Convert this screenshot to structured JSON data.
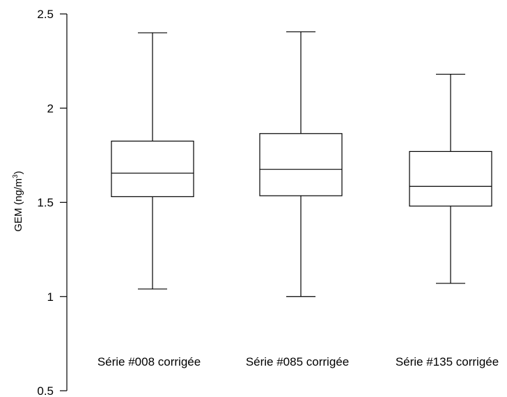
{
  "chart_data": {
    "type": "boxplot",
    "title": "",
    "xlabel": "",
    "ylabel": {
      "main": "GEM (ng/m",
      "sup": "3",
      "tail": ")"
    },
    "ylim": [
      0.5,
      2.5
    ],
    "yticks": [
      0.5,
      1,
      1.5,
      2,
      2.5
    ],
    "ytick_labels": [
      "0.5",
      "1",
      "1.5",
      "2",
      "2.5"
    ],
    "grid": false,
    "categories": [
      "Série #008 corrigée",
      "Série #085 corrigée",
      "Série #135 corrigée"
    ],
    "boxes": [
      {
        "min": 1.04,
        "q1": 1.53,
        "median": 1.655,
        "q3": 1.825,
        "max": 2.4
      },
      {
        "min": 1.0,
        "q1": 1.535,
        "median": 1.675,
        "q3": 1.865,
        "max": 2.405
      },
      {
        "min": 1.07,
        "q1": 1.48,
        "median": 1.585,
        "q3": 1.77,
        "max": 2.18
      }
    ]
  }
}
